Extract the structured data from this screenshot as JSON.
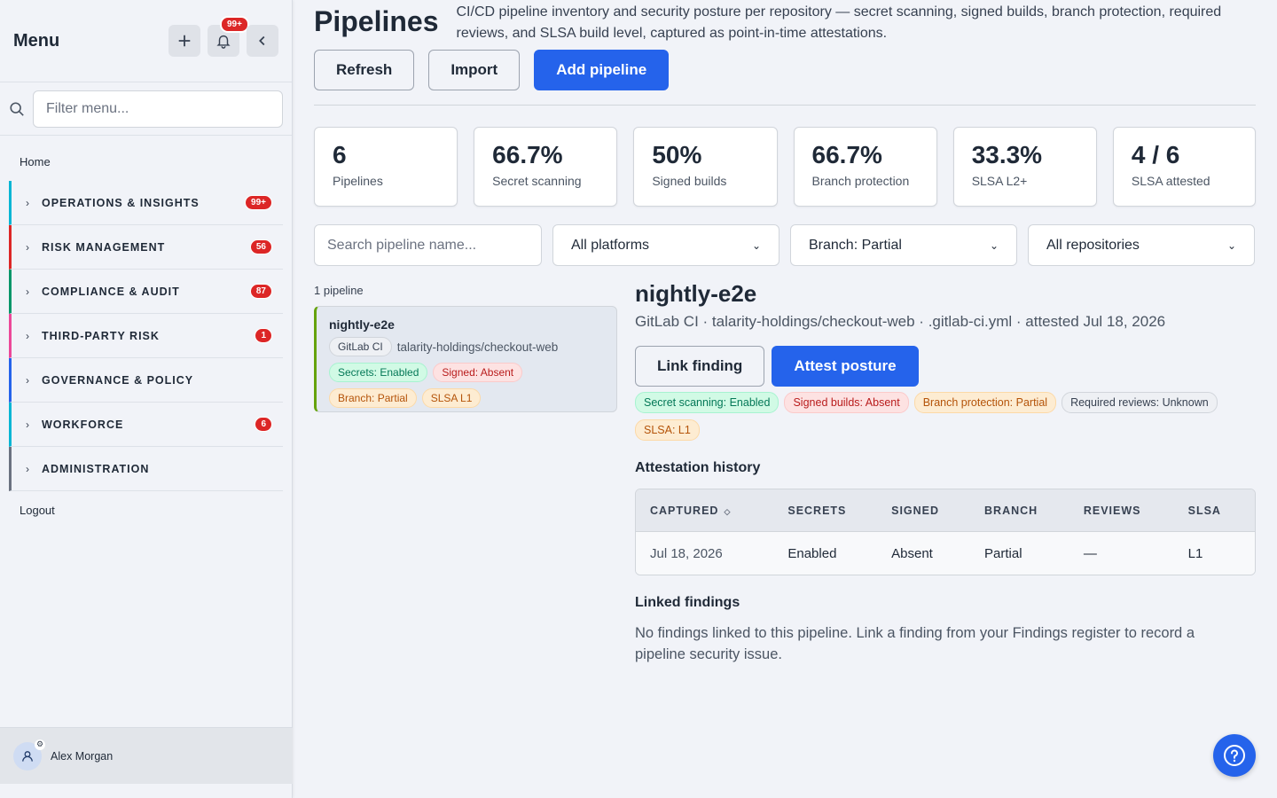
{
  "sidebar": {
    "title": "Menu",
    "notifications_badge": "99+",
    "filter_placeholder": "Filter menu...",
    "home": "Home",
    "groups": [
      {
        "label": "OPERATIONS & INSIGHTS",
        "count": "99+",
        "color": "#06b6d4"
      },
      {
        "label": "RISK MANAGEMENT",
        "count": "56",
        "color": "#dc2626"
      },
      {
        "label": "COMPLIANCE & AUDIT",
        "count": "87",
        "color": "#059669"
      },
      {
        "label": "THIRD-PARTY RISK",
        "count": "1",
        "color": "#ec4899"
      },
      {
        "label": "GOVERNANCE & POLICY",
        "count": "",
        "color": "#2563eb"
      },
      {
        "label": "WORKFORCE",
        "count": "6",
        "color": "#06b6d4"
      },
      {
        "label": "ADMINISTRATION",
        "count": "",
        "color": "#6b7280"
      }
    ],
    "logout": "Logout",
    "user_name": "Alex Morgan"
  },
  "header": {
    "title": "Pipelines",
    "subtitle": "CI/CD pipeline inventory and security posture per repository — secret scanning, signed builds, branch protection, required reviews, and SLSA build level, captured as point-in-time attestations.",
    "refresh": "Refresh",
    "import": "Import",
    "add": "Add pipeline"
  },
  "stats": [
    {
      "value": "6",
      "label": "Pipelines"
    },
    {
      "value": "66.7%",
      "label": "Secret scanning"
    },
    {
      "value": "50%",
      "label": "Signed builds"
    },
    {
      "value": "66.7%",
      "label": "Branch protection"
    },
    {
      "value": "33.3%",
      "label": "SLSA L2+"
    },
    {
      "value": "4 / 6",
      "label": "SLSA attested"
    }
  ],
  "filters": {
    "search_placeholder": "Search pipeline name...",
    "platform": "All platforms",
    "branch": "Branch: Partial",
    "repository": "All repositories"
  },
  "list": {
    "count": "1 pipeline",
    "items": [
      {
        "name": "nightly-e2e",
        "platform": "GitLab CI",
        "repo": "talarity-holdings/checkout-web",
        "tags": [
          "Secrets: Enabled",
          "Signed: Absent",
          "Branch: Partial",
          "SLSA L1"
        ]
      }
    ]
  },
  "detail": {
    "title": "nightly-e2e",
    "meta": "GitLab CI · talarity-holdings/checkout-web · .gitlab-ci.yml · attested Jul 18, 2026",
    "link_finding": "Link finding",
    "attest": "Attest posture",
    "tags": [
      "Secret scanning: Enabled",
      "Signed builds: Absent",
      "Branch protection: Partial",
      "Required reviews: Unknown",
      "SLSA: L1"
    ],
    "history_title": "Attestation history",
    "history_columns": [
      "CAPTURED",
      "SECRETS",
      "SIGNED",
      "BRANCH",
      "REVIEWS",
      "SLSA"
    ],
    "history_rows": [
      [
        "Jul 18, 2026",
        "Enabled",
        "Absent",
        "Partial",
        "—",
        "L1"
      ]
    ],
    "linked_title": "Linked findings",
    "linked_empty": "No findings linked to this pipeline. Link a finding from your Findings register to record a pipeline security issue."
  }
}
